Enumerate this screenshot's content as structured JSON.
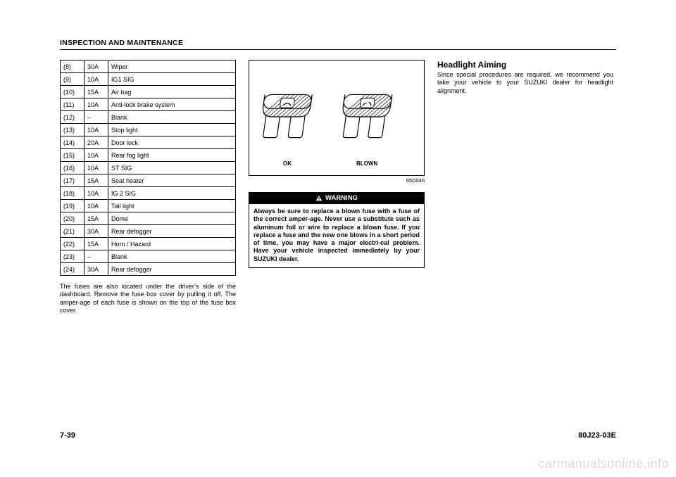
{
  "header": {
    "title": "INSPECTION AND MAINTENANCE"
  },
  "fuse_table": {
    "columns_width": [
      34,
      34,
      182
    ],
    "border_color": "#000000",
    "font_size": 9,
    "rows": [
      {
        "n": "(8)",
        "amp": "30A",
        "label": "Wiper"
      },
      {
        "n": "(9)",
        "amp": "10A",
        "label": "IG1 SIG"
      },
      {
        "n": "(10)",
        "amp": "15A",
        "label": "Air bag"
      },
      {
        "n": "(11)",
        "amp": "10A",
        "label": "Anti-lock brake system"
      },
      {
        "n": "(12)",
        "amp": "–",
        "label": "Blank"
      },
      {
        "n": "(13)",
        "amp": "10A",
        "label": "Stop light"
      },
      {
        "n": "(14)",
        "amp": "20A",
        "label": "Door lock"
      },
      {
        "n": "(15)",
        "amp": "10A",
        "label": "Rear fog light"
      },
      {
        "n": "(16)",
        "amp": "10A",
        "label": "ST SIG"
      },
      {
        "n": "(17)",
        "amp": "15A",
        "label": "Seat heater"
      },
      {
        "n": "(18)",
        "amp": "10A",
        "label": "IG 2 SIG"
      },
      {
        "n": "(19)",
        "amp": "10A",
        "label": "Tail light"
      },
      {
        "n": "(20)",
        "amp": "15A",
        "label": "Dome"
      },
      {
        "n": "(21)",
        "amp": "30A",
        "label": "Rear defogger"
      },
      {
        "n": "(22)",
        "amp": "15A",
        "label": "Horn / Hazard"
      },
      {
        "n": "(23)",
        "amp": "–",
        "label": "Blank"
      },
      {
        "n": "(24)",
        "amp": "30A",
        "label": "Rear defogger"
      }
    ]
  },
  "paragraph": "The fuses are also located under the driver’s side of the dashboard. Remove the fuse box cover by pulling it off. The amper-age of each fuse is shown on the top of the fuse box cover.",
  "figure": {
    "ok_label": "OK",
    "blown_label": "BLOWN",
    "code": "65D046",
    "stroke_color": "#000000",
    "fill_color": "#ffffff",
    "hatch_color": "#000000"
  },
  "warning": {
    "head": "WARNING",
    "body": "Always be sure to replace a blown fuse with a fuse of the correct amper-age. Never use a substitute such as aluminum foil or wire to replace a blown fuse. If you replace a fuse and the new one blows in a short period of time, you may have a major electri-cal problem. Have your vehicle inspected immediately by your SUZUKI dealer."
  },
  "right_section": {
    "title": "Headlight Aiming",
    "body": "Since special procedures are required, we recommend you take your vehicle to your SUZUKI dealer for headlight alignment."
  },
  "footer": {
    "page": "7-39",
    "doc": "80J23-03E"
  },
  "watermark": "carmanualsonline.info",
  "colors": {
    "text": "#000000",
    "background": "#ffffff",
    "watermark": "#d9d9d9",
    "warning_head_bg": "#000000",
    "warning_head_fg": "#ffffff"
  }
}
